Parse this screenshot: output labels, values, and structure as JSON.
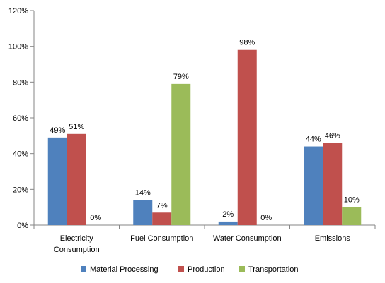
{
  "chart_data": {
    "type": "bar",
    "categories": [
      [
        "Electricity",
        "Consumption"
      ],
      [
        "Fuel Consumption"
      ],
      [
        "Water Consumption"
      ],
      [
        "Emissions"
      ]
    ],
    "series": [
      {
        "name": "Material Processing",
        "color": "#4F81BD",
        "values": [
          49,
          14,
          2,
          44
        ]
      },
      {
        "name": "Production",
        "color": "#C0504D",
        "values": [
          51,
          7,
          98,
          46
        ]
      },
      {
        "name": "Transportation",
        "color": "#9BBB59",
        "values": [
          0,
          79,
          0,
          10
        ]
      }
    ],
    "data_labels": [
      [
        "49%",
        "14%",
        "2%",
        "44%"
      ],
      [
        "51%",
        "7%",
        "98%",
        "46%"
      ],
      [
        "0%",
        "79%",
        "0%",
        "10%"
      ]
    ],
    "y_ticks": [
      "0%",
      "20%",
      "40%",
      "60%",
      "80%",
      "100%",
      "120%"
    ],
    "ylim": [
      0,
      120
    ],
    "grid": false,
    "legend_position": "bottom"
  }
}
